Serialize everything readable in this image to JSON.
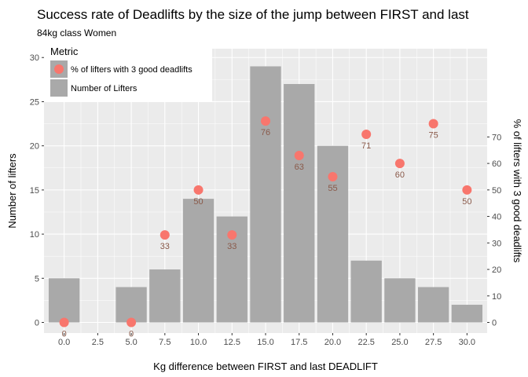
{
  "chart_data": {
    "type": "bar",
    "title": "Success rate of Deadlifts by the size of the jump between FIRST and last",
    "subtitle": "84kg class Women",
    "xlabel": "Kg difference between FIRST and last DEADLIFT",
    "ylabel": "Number of lifters",
    "ylabel_right": "% of lifters with 3 good deadlifts",
    "xlim": [
      -1.5,
      31.5
    ],
    "ylim": [
      -1.2,
      31
    ],
    "ylim_right": [
      -4,
      103.3
    ],
    "x_ticks": [
      "0.0",
      "2.5",
      "5.0",
      "7.5",
      "10.0",
      "12.5",
      "15.0",
      "17.5",
      "20.0",
      "22.5",
      "25.0",
      "27.5",
      "30.0"
    ],
    "y_ticks": [
      "0",
      "5",
      "10",
      "15",
      "20",
      "25",
      "30"
    ],
    "y_ticks_right": [
      "0",
      "10",
      "20",
      "30",
      "40",
      "50",
      "60",
      "70"
    ],
    "legend": {
      "title": "Metric",
      "position": "top-left",
      "entries": [
        "% of lifters with 3 good deadlifts",
        "Number of Lifters"
      ]
    },
    "colors": {
      "bars": "#a9a9a9",
      "points": "#f8766d",
      "panel": "#ebebeb",
      "grid": "#ffffff"
    },
    "series": [
      {
        "name": "Number of Lifters",
        "type": "bar",
        "x": [
          0,
          5,
          7.5,
          10,
          12.5,
          15,
          17.5,
          20,
          22.5,
          25,
          27.5,
          30
        ],
        "values": [
          5,
          4,
          6,
          14,
          12,
          29,
          27,
          20,
          7,
          5,
          4,
          2
        ]
      },
      {
        "name": "% of lifters with 3 good deadlifts",
        "type": "scatter",
        "axis": "right",
        "x": [
          0,
          5,
          7.5,
          10,
          12.5,
          15,
          17.5,
          20,
          22.5,
          25,
          27.5,
          30
        ],
        "values": [
          0,
          0,
          33,
          50,
          33,
          76,
          63,
          55,
          71,
          60,
          75,
          50
        ],
        "labels": [
          "0",
          "0",
          "33",
          "50",
          "33",
          "76",
          "63",
          "55",
          "71",
          "60",
          "75",
          "50"
        ]
      }
    ]
  }
}
